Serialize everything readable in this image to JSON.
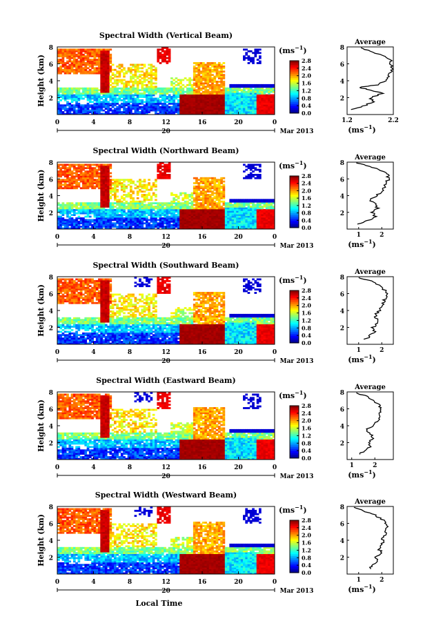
{
  "figure": {
    "xlabel": "Local Time",
    "date_label": "Mar 2013",
    "day_label": "20",
    "x_ticks": [
      "0",
      "4",
      "8",
      "12",
      "16",
      "20",
      "0"
    ],
    "ylabel": "Height (km)",
    "y_ticks": [
      "8",
      "6",
      "4",
      "2"
    ],
    "colorbar_unit": "(ms",
    "colorbar_ticks": [
      "2.8",
      "2.4",
      "2.0",
      "1.6",
      "1.2",
      "0.8",
      "0.4",
      "0.0"
    ],
    "average_title": "Average",
    "average_unit": "(ms",
    "unit_exp": "−1",
    "unit_close": ")"
  },
  "chart_data": [
    {
      "type": "heatmap",
      "title": "Spectral Width (Vertical Beam)",
      "xlim": [
        0,
        24
      ],
      "ylim": [
        0,
        8
      ],
      "colorbar_range": [
        0.0,
        2.8
      ],
      "average_profile": {
        "xlim": [
          1.2,
          2.2
        ],
        "x_ticks": [
          "1.2",
          "2.2"
        ],
        "height_km": [
          0.6,
          1.0,
          1.5,
          2.0,
          2.5,
          3.0,
          3.2,
          3.5,
          4.0,
          4.5,
          5.0,
          5.5,
          6.0,
          6.5,
          7.0,
          7.5,
          7.9
        ],
        "width_ms": [
          1.3,
          1.55,
          1.75,
          1.72,
          1.95,
          1.65,
          1.45,
          1.85,
          2.05,
          2.1,
          2.15,
          2.18,
          2.12,
          2.15,
          1.95,
          1.7,
          1.5
        ]
      }
    },
    {
      "type": "heatmap",
      "title": "Spectral Width (Northward Beam)",
      "xlim": [
        0,
        24
      ],
      "ylim": [
        0,
        8
      ],
      "colorbar_range": [
        0.0,
        2.8
      ],
      "average_profile": {
        "xlim": [
          0.5,
          2.5
        ],
        "x_ticks": [
          "1",
          "2"
        ],
        "height_km": [
          0.6,
          1.0,
          1.5,
          2.0,
          2.5,
          3.0,
          3.5,
          4.0,
          4.5,
          5.0,
          5.5,
          6.0,
          6.5,
          7.0,
          7.5,
          7.9
        ],
        "width_ms": [
          1.0,
          1.4,
          1.7,
          1.6,
          1.8,
          1.7,
          1.5,
          1.8,
          2.0,
          2.1,
          2.2,
          2.3,
          2.25,
          2.0,
          1.5,
          0.9
        ]
      }
    },
    {
      "type": "heatmap",
      "title": "Spectral Width (Southward Beam)",
      "xlim": [
        0,
        24
      ],
      "ylim": [
        0,
        8
      ],
      "colorbar_range": [
        0.0,
        2.8
      ],
      "average_profile": {
        "xlim": [
          0.5,
          2.5
        ],
        "x_ticks": [
          "1",
          "2"
        ],
        "height_km": [
          0.6,
          1.0,
          1.5,
          2.0,
          2.5,
          3.0,
          3.5,
          4.0,
          4.5,
          5.0,
          5.5,
          6.0,
          6.5,
          7.0,
          7.5,
          7.9
        ],
        "width_ms": [
          1.3,
          1.5,
          1.7,
          1.6,
          1.85,
          1.8,
          1.7,
          1.9,
          2.05,
          2.1,
          2.15,
          2.2,
          2.1,
          1.9,
          1.5,
          1.0
        ]
      }
    },
    {
      "type": "heatmap",
      "title": "Spectral Width (Eastward Beam)",
      "xlim": [
        0,
        24
      ],
      "ylim": [
        0,
        8
      ],
      "colorbar_range": [
        0.0,
        2.8
      ],
      "average_profile": {
        "xlim": [
          0.8,
          2.8
        ],
        "x_ticks": [
          "1",
          "2"
        ],
        "height_km": [
          0.6,
          1.0,
          1.5,
          2.0,
          2.5,
          3.0,
          3.5,
          4.0,
          4.5,
          5.0,
          5.5,
          6.0,
          6.5,
          7.0,
          7.5,
          7.9
        ],
        "width_ms": [
          1.3,
          1.55,
          1.8,
          1.75,
          1.95,
          1.8,
          1.6,
          1.95,
          2.1,
          2.2,
          2.25,
          2.3,
          2.2,
          1.95,
          1.6,
          1.2
        ]
      }
    },
    {
      "type": "heatmap",
      "title": "Spectral Width (Westward Beam)",
      "xlim": [
        0,
        24
      ],
      "ylim": [
        0,
        8
      ],
      "colorbar_range": [
        0.0,
        2.8
      ],
      "average_profile": {
        "xlim": [
          0.5,
          2.5
        ],
        "x_ticks": [
          "1",
          "2"
        ],
        "height_km": [
          0.6,
          1.0,
          1.5,
          2.0,
          2.5,
          3.0,
          3.5,
          4.0,
          4.5,
          5.0,
          5.5,
          6.0,
          6.5,
          7.0,
          7.5,
          7.9
        ],
        "width_ms": [
          1.5,
          1.6,
          1.8,
          1.75,
          1.95,
          1.9,
          2.0,
          2.05,
          2.1,
          2.15,
          2.2,
          2.2,
          2.0,
          1.7,
          1.2,
          0.8
        ]
      }
    }
  ]
}
